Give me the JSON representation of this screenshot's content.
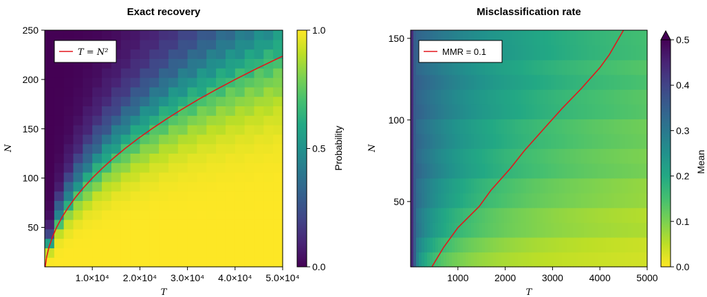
{
  "colors": {
    "viridis": [
      "#440154",
      "#482475",
      "#414487",
      "#355f8d",
      "#2a788e",
      "#21918c",
      "#22a884",
      "#44bf70",
      "#7ad151",
      "#bddf26",
      "#fde725"
    ],
    "curve": "#e3161b"
  },
  "chart_data": [
    {
      "type": "heatmap",
      "title": "Exact recovery",
      "xlabel": "T",
      "ylabel": "N",
      "xlim": [
        0,
        50000
      ],
      "ylim": [
        10,
        250
      ],
      "x_ticks": [
        {
          "value": 10000,
          "label": "1.0×10⁴"
        },
        {
          "value": 20000,
          "label": "2.0×10⁴"
        },
        {
          "value": 30000,
          "label": "3.0×10⁴"
        },
        {
          "value": 40000,
          "label": "4.0×10⁴"
        },
        {
          "value": 50000,
          "label": "5.0×10⁴"
        }
      ],
      "y_ticks": [
        50,
        100,
        150,
        200,
        250
      ],
      "grid": {
        "columns": 25,
        "rows": 25
      },
      "color_scale": {
        "min": 0.0,
        "max": 1.0,
        "label": "Probability",
        "ticks": [
          {
            "value": 0.0,
            "label": "0.0"
          },
          {
            "value": 0.5,
            "label": "0.5"
          },
          {
            "value": 1.0,
            "label": "1.0"
          }
        ]
      },
      "legend": {
        "label": "T = N²",
        "placement": "top-left"
      },
      "curve": {
        "name": "T = N²",
        "points": [
          [
            100,
            10
          ],
          [
            400,
            20
          ],
          [
            900,
            30
          ],
          [
            1600,
            40
          ],
          [
            2500,
            50
          ],
          [
            3600,
            60
          ],
          [
            4900,
            70
          ],
          [
            6400,
            80
          ],
          [
            8100,
            90
          ],
          [
            10000,
            100
          ],
          [
            12100,
            110
          ],
          [
            14400,
            120
          ],
          [
            16900,
            130
          ],
          [
            19600,
            140
          ],
          [
            22500,
            150
          ],
          [
            25600,
            160
          ],
          [
            28900,
            170
          ],
          [
            32400,
            180
          ],
          [
            36100,
            190
          ],
          [
            40000,
            200
          ],
          [
            44100,
            210
          ],
          [
            48400,
            220
          ],
          [
            50000,
            223.6
          ]
        ]
      }
    },
    {
      "type": "heatmap",
      "title": "Misclassification rate",
      "xlabel": "T",
      "ylabel": "N",
      "xlim": [
        0,
        5000
      ],
      "ylim": [
        10,
        155
      ],
      "x_ticks": [
        {
          "value": 1000,
          "label": "1000"
        },
        {
          "value": 2000,
          "label": "2000"
        },
        {
          "value": 3000,
          "label": "3000"
        },
        {
          "value": 4000,
          "label": "4000"
        },
        {
          "value": 5000,
          "label": "5000"
        }
      ],
      "y_ticks": [
        50,
        100,
        150
      ],
      "color_scale": {
        "min": 0.0,
        "max": 0.5,
        "label": "Mean",
        "extend": "max",
        "ticks": [
          {
            "value": 0.0,
            "label": "0.0"
          },
          {
            "value": 0.1,
            "label": "0.1"
          },
          {
            "value": 0.2,
            "label": "0.2"
          },
          {
            "value": 0.3,
            "label": "0.3"
          },
          {
            "value": 0.4,
            "label": "0.4"
          },
          {
            "value": 0.5,
            "label": "0.5"
          }
        ]
      },
      "legend": {
        "label": "MMR = 0.1",
        "placement": "top-left"
      },
      "curve": {
        "name": "MMR = 0.1",
        "points": [
          [
            450,
            10
          ],
          [
            700,
            22
          ],
          [
            1000,
            34
          ],
          [
            1450,
            47
          ],
          [
            1700,
            57
          ],
          [
            2100,
            70
          ],
          [
            2400,
            81
          ],
          [
            2800,
            94
          ],
          [
            3200,
            107
          ],
          [
            3600,
            119
          ],
          [
            4000,
            132
          ],
          [
            4200,
            140
          ],
          [
            4500,
            155
          ]
        ]
      }
    }
  ]
}
